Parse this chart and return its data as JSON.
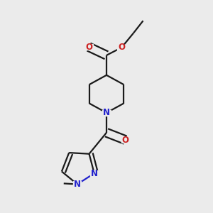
{
  "background_color": "#EBEBEB",
  "bond_color": "#1a1a1a",
  "nitrogen_color": "#2020CC",
  "oxygen_color": "#CC2020",
  "line_width": 1.6,
  "figsize": [
    3.0,
    3.0
  ],
  "dpi": 100,
  "xlim": [
    0,
    1
  ],
  "ylim": [
    0,
    1
  ]
}
